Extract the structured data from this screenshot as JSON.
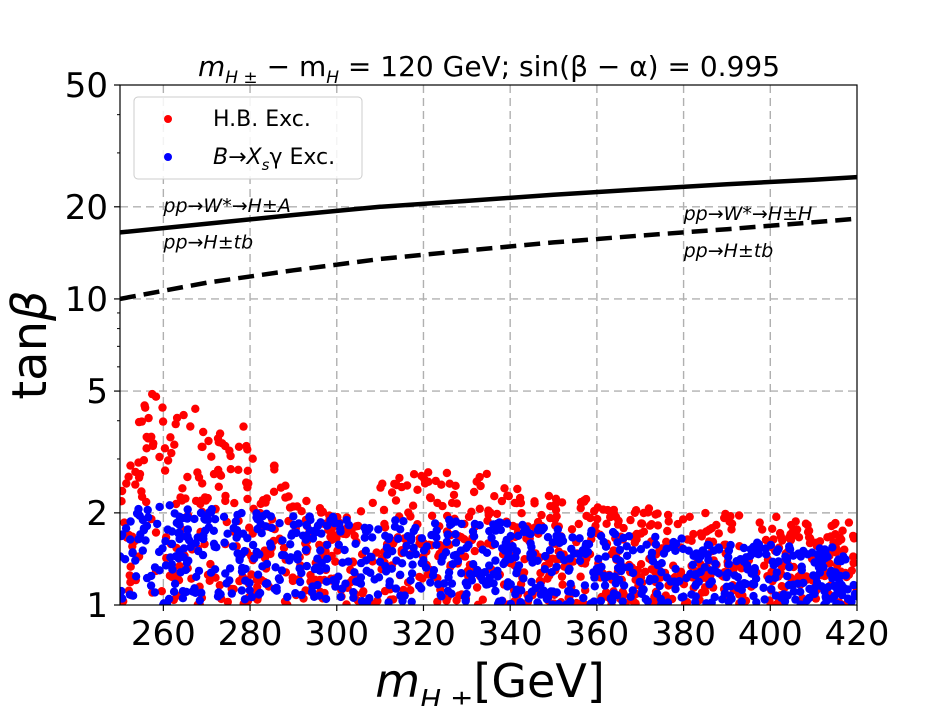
{
  "chart_data": {
    "type": "scatter",
    "title": "m_{H±} − m_H = 120 GeV; sin(β − α) = 0.995",
    "title_parts": {
      "lhs": "m",
      "lhs_sub1": "H ±",
      "mid": " − m",
      "lhs_sub2": "H",
      "rhs": " = 120 GeV; sin(β − α) = 0.995"
    },
    "xlabel": "m_{H±}[GeV]",
    "xlabel_parts": {
      "main": "m",
      "sub": "H ±",
      "unit": "[GeV]"
    },
    "ylabel": "tanβ",
    "ylabel_parts": {
      "roman": "tan",
      "greek": "β"
    },
    "xlim": [
      250,
      420
    ],
    "ylim": [
      1,
      50
    ],
    "yscale": "log",
    "grid": true,
    "legend_position": "top-left",
    "x_ticks": [
      "260",
      "280",
      "300",
      "320",
      "340",
      "360",
      "380",
      "400",
      "420"
    ],
    "x_tick_values": [
      260,
      280,
      300,
      320,
      340,
      360,
      380,
      400,
      420
    ],
    "y_ticks": [
      "1",
      "2",
      "5",
      "10",
      "20",
      "50"
    ],
    "y_tick_values": [
      1,
      2,
      5,
      10,
      20,
      50
    ],
    "legend": [
      {
        "label": "H.B. Exc.",
        "color": "#ff0000"
      },
      {
        "label_main": "B→X",
        "label_sub": "s",
        "label_rest": "γ Exc.",
        "label": "B→X_s γ Exc.",
        "color": "#0000ff"
      }
    ],
    "lines": [
      {
        "style": "solid",
        "color": "#000000",
        "points": [
          [
            250,
            16.5
          ],
          [
            270,
            17.6
          ],
          [
            290,
            18.8
          ],
          [
            310,
            20.0
          ],
          [
            330,
            20.9
          ],
          [
            350,
            21.9
          ],
          [
            370,
            22.8
          ],
          [
            390,
            23.7
          ],
          [
            410,
            24.5
          ],
          [
            420,
            25.0
          ]
        ]
      },
      {
        "style": "dashed",
        "color": "#000000",
        "points": [
          [
            250,
            10.0
          ],
          [
            270,
            11.3
          ],
          [
            290,
            12.4
          ],
          [
            310,
            13.5
          ],
          [
            330,
            14.4
          ],
          [
            350,
            15.3
          ],
          [
            370,
            16.1
          ],
          [
            390,
            16.9
          ],
          [
            410,
            17.8
          ],
          [
            420,
            18.3
          ]
        ]
      }
    ],
    "annotations": [
      {
        "text": "pp→W*→H±A",
        "x": 260,
        "y": 19.2
      },
      {
        "text": "pp→H±tb",
        "x": 260,
        "y": 14.6
      },
      {
        "text": "pp→W*→H±H",
        "x": 380,
        "y": 18.1
      },
      {
        "text": "pp→H±tb",
        "x": 380,
        "y": 13.7
      }
    ],
    "scatter_regions": {
      "red_envelope": [
        [
          250,
          5.2
        ],
        [
          255,
          5.1
        ],
        [
          260,
          4.8
        ],
        [
          265,
          4.6
        ],
        [
          270,
          4.4
        ],
        [
          275,
          4.2
        ],
        [
          280,
          3.7
        ],
        [
          285,
          3.0
        ],
        [
          290,
          2.5
        ],
        [
          295,
          2.1
        ],
        [
          300,
          2.0
        ],
        [
          305,
          2.0
        ],
        [
          310,
          2.5
        ],
        [
          315,
          2.8
        ],
        [
          320,
          2.9
        ],
        [
          325,
          2.8
        ],
        [
          330,
          2.8
        ],
        [
          335,
          2.7
        ],
        [
          340,
          2.5
        ],
        [
          345,
          2.4
        ],
        [
          350,
          2.3
        ],
        [
          360,
          2.2
        ],
        [
          370,
          2.1
        ],
        [
          380,
          2.0
        ],
        [
          390,
          2.0
        ],
        [
          400,
          1.95
        ],
        [
          410,
          1.9
        ],
        [
          420,
          1.9
        ]
      ],
      "blue_envelope": [
        [
          250,
          2.2
        ],
        [
          260,
          2.2
        ],
        [
          270,
          2.1
        ],
        [
          280,
          2.0
        ],
        [
          290,
          2.0
        ],
        [
          300,
          1.95
        ],
        [
          310,
          1.95
        ],
        [
          320,
          1.9
        ],
        [
          330,
          1.9
        ],
        [
          340,
          1.85
        ],
        [
          350,
          1.8
        ],
        [
          360,
          1.75
        ],
        [
          370,
          1.7
        ],
        [
          380,
          1.65
        ],
        [
          390,
          1.6
        ],
        [
          400,
          1.6
        ],
        [
          410,
          1.55
        ],
        [
          420,
          1.55
        ]
      ],
      "red_points_count": 900,
      "blue_points_count": 800
    },
    "colors": {
      "red": "#ff0000",
      "blue": "#0000ff",
      "grid": "#b0b0b0"
    }
  }
}
